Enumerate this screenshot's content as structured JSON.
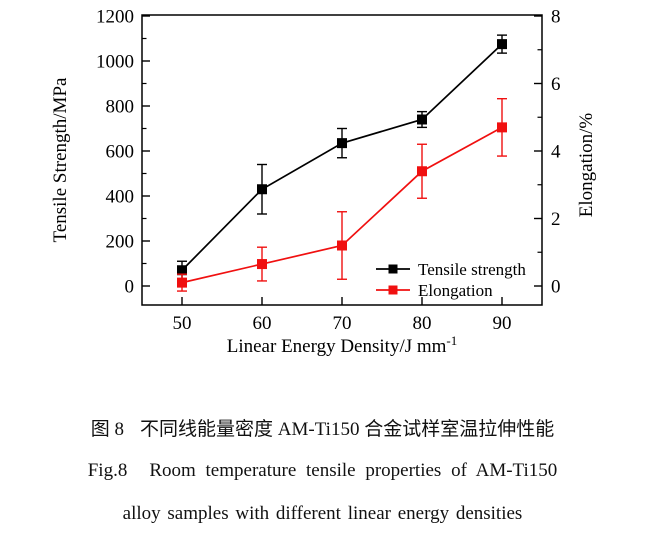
{
  "chart_data": {
    "type": "line",
    "x": [
      50,
      60,
      70,
      80,
      90
    ],
    "xlabel": "Linear Energy Density/J mm",
    "xlabel_superscript": "-1",
    "ylabel_left": "Tensile Strength/MPa",
    "ylabel_right": "Elongation/%",
    "xlim": [
      45,
      95
    ],
    "xticks": [
      50,
      60,
      70,
      80,
      90
    ],
    "ylim_left": [
      0,
      1200
    ],
    "yticks_left": [
      0,
      200,
      400,
      600,
      800,
      1000,
      1200
    ],
    "yticks_left_minor_step": 100,
    "ylim_right": [
      0,
      8
    ],
    "yticks_right": [
      0,
      2,
      4,
      6,
      8
    ],
    "yticks_right_minor_step": 1,
    "grid": false,
    "legend_position": "inside-bottom-right",
    "series": [
      {
        "name": "Tensile strength",
        "axis": "left",
        "color": "#000000",
        "marker": "square",
        "values": [
          70,
          430,
          635,
          740,
          1075
        ],
        "errors": [
          40,
          110,
          65,
          35,
          40
        ]
      },
      {
        "name": "Elongation",
        "axis": "right",
        "color": "#f01010",
        "marker": "square",
        "values": [
          0.1,
          0.65,
          1.2,
          3.4,
          4.7
        ],
        "errors": [
          0.25,
          0.5,
          1.0,
          0.8,
          0.85
        ]
      }
    ]
  },
  "caption": {
    "zh_label": "图 8",
    "zh_text": "不同线能量密度 AM-Ti150 合金试样室温拉伸性能",
    "en_label": "Fig.8",
    "en_text": "Room temperature tensile properties of AM-Ti150",
    "en_line2": "alloy samples with different linear energy densities"
  },
  "colors": {
    "tensile": "#000000",
    "elongation": "#f01010",
    "background": "#ffffff",
    "axis": "#000000"
  }
}
